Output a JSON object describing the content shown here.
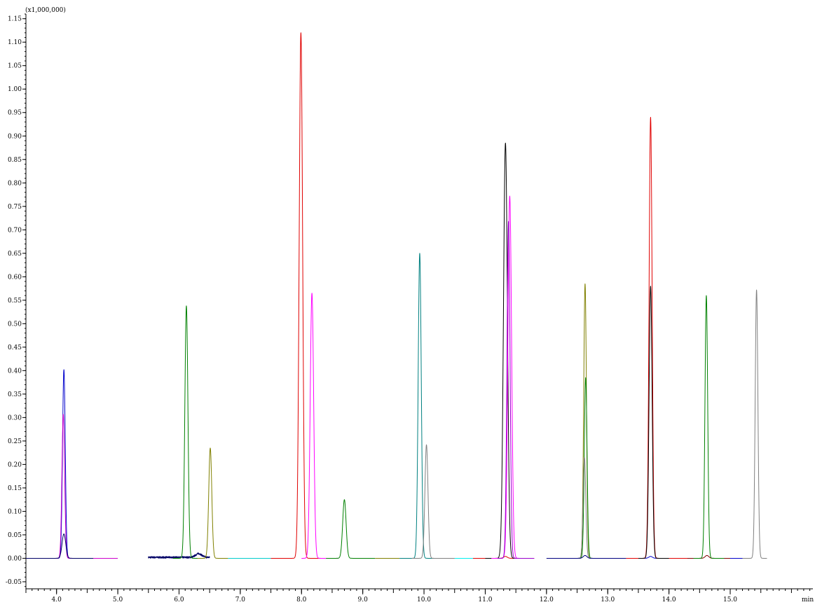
{
  "chart_data": {
    "type": "line",
    "y_multiplier_label": "(x1,000,000)",
    "x_unit_label": "min",
    "xlim": [
      3.5,
      16.35
    ],
    "ylim": [
      -0.065,
      1.16
    ],
    "x_ticks": [
      4.0,
      5.0,
      6.0,
      7.0,
      8.0,
      9.0,
      10.0,
      11.0,
      12.0,
      13.0,
      14.0,
      15.0
    ],
    "x_tick_labels": [
      "4.0",
      "5.0",
      "6.0",
      "7.0",
      "8.0",
      "9.0",
      "10.0",
      "11.0",
      "12.0",
      "13.0",
      "14.0",
      "15.0"
    ],
    "y_ticks": [
      -0.05,
      0.0,
      0.05,
      0.1,
      0.15,
      0.2,
      0.25,
      0.3,
      0.35,
      0.4,
      0.45,
      0.5,
      0.55,
      0.6,
      0.65,
      0.7,
      0.75,
      0.8,
      0.85,
      0.9,
      0.95,
      1.0,
      1.05,
      1.1,
      1.15
    ],
    "y_tick_labels": [
      "-0.05",
      "0.00",
      "0.05",
      "0.10",
      "0.15",
      "0.20",
      "0.25",
      "0.30",
      "0.35",
      "0.40",
      "0.45",
      "0.50",
      "0.55",
      "0.60",
      "0.65",
      "0.70",
      "0.75",
      "0.80",
      "0.85",
      "0.90",
      "0.95",
      "1.00",
      "1.05",
      "1.10",
      "1.15"
    ],
    "grid": false,
    "legend": "none",
    "series": [
      {
        "color": "#0000cc",
        "range": [
          3.5,
          4.6
        ],
        "peaks": [
          {
            "rt": 4.12,
            "height": 0.402,
            "width": 0.022
          }
        ]
      },
      {
        "color": "#cc00cc",
        "range": [
          3.5,
          5.0
        ],
        "peaks": [
          {
            "rt": 4.11,
            "height": 0.307,
            "width": 0.022
          }
        ]
      },
      {
        "color": "#000066",
        "range": [
          3.5,
          4.6
        ],
        "peaks": [
          {
            "rt": 4.12,
            "height": 0.052,
            "width": 0.03
          }
        ]
      },
      {
        "color": "#000066",
        "range": [
          5.5,
          6.5
        ],
        "noise": 0.004,
        "peaks": [
          {
            "rt": 6.32,
            "height": 0.008,
            "width": 0.05
          }
        ]
      },
      {
        "color": "#008000",
        "range": [
          5.9,
          6.4
        ],
        "peaks": [
          {
            "rt": 6.12,
            "height": 0.538,
            "width": 0.025
          }
        ]
      },
      {
        "color": "#808000",
        "range": [
          6.3,
          6.8
        ],
        "peaks": [
          {
            "rt": 6.51,
            "height": 0.235,
            "width": 0.025
          }
        ]
      },
      {
        "color": "#00cccc",
        "range": [
          6.8,
          7.5
        ],
        "peaks": []
      },
      {
        "color": "#e00000",
        "range": [
          7.5,
          8.5
        ],
        "peaks": [
          {
            "rt": 7.99,
            "height": 1.12,
            "width": 0.028
          }
        ]
      },
      {
        "color": "#ff00ff",
        "range": [
          8.0,
          8.6
        ],
        "peaks": [
          {
            "rt": 8.17,
            "height": 0.565,
            "width": 0.028
          }
        ]
      },
      {
        "color": "#008000",
        "range": [
          8.4,
          9.2
        ],
        "peaks": [
          {
            "rt": 8.7,
            "height": 0.125,
            "width": 0.028
          }
        ]
      },
      {
        "color": "#808000",
        "range": [
          9.2,
          9.6
        ],
        "peaks": []
      },
      {
        "color": "#008080",
        "range": [
          9.6,
          10.5
        ],
        "peaks": [
          {
            "rt": 9.93,
            "height": 0.65,
            "width": 0.025
          }
        ]
      },
      {
        "color": "#808080",
        "range": [
          9.8,
          10.5
        ],
        "peaks": [
          {
            "rt": 10.04,
            "height": 0.242,
            "width": 0.025
          }
        ]
      },
      {
        "color": "#00eeee",
        "range": [
          10.5,
          10.8
        ],
        "peaks": []
      },
      {
        "color": "#e00000",
        "range": [
          10.8,
          11.8
        ],
        "peaks": [
          {
            "rt": 11.33,
            "height": 0.004,
            "width": 0.03
          }
        ]
      },
      {
        "color": "#000000",
        "range": [
          11.0,
          11.7
        ],
        "peaks": [
          {
            "rt": 11.33,
            "height": 0.885,
            "width": 0.032
          }
        ]
      },
      {
        "color": "#ff00ff",
        "range": [
          11.1,
          11.8
        ],
        "peaks": [
          {
            "rt": 11.4,
            "height": 0.772,
            "width": 0.03
          }
        ]
      },
      {
        "color": "#9900cc",
        "range": [
          11.2,
          11.8
        ],
        "peaks": [
          {
            "rt": 11.38,
            "height": 0.718,
            "width": 0.025
          }
        ]
      },
      {
        "color": "#808000",
        "range": [
          12.4,
          12.9
        ],
        "peaks": [
          {
            "rt": 12.63,
            "height": 0.585,
            "width": 0.022
          }
        ]
      },
      {
        "color": "#008000",
        "range": [
          12.4,
          12.9
        ],
        "peaks": [
          {
            "rt": 12.64,
            "height": 0.385,
            "width": 0.022
          }
        ]
      },
      {
        "color": "#808080",
        "range": [
          12.4,
          12.9
        ],
        "peaks": [
          {
            "rt": 12.62,
            "height": 0.215,
            "width": 0.022
          }
        ]
      },
      {
        "color": "#000080",
        "range": [
          12.0,
          13.3
        ],
        "peaks": [
          {
            "rt": 12.63,
            "height": 0.006,
            "width": 0.03
          }
        ]
      },
      {
        "color": "#00cccc",
        "range": [
          13.3,
          13.6
        ],
        "peaks": []
      },
      {
        "color": "#0000cc",
        "range": [
          13.4,
          14.0
        ],
        "peaks": [
          {
            "rt": 13.7,
            "height": 0.004,
            "width": 0.03
          }
        ]
      },
      {
        "color": "#e00000",
        "range": [
          13.3,
          14.5
        ],
        "peaks": [
          {
            "rt": 13.7,
            "height": 0.94,
            "width": 0.025
          }
        ]
      },
      {
        "color": "#000000",
        "range": [
          13.5,
          14.0
        ],
        "peaks": [
          {
            "rt": 13.7,
            "height": 0.58,
            "width": 0.025
          }
        ]
      },
      {
        "color": "#800000",
        "range": [
          14.3,
          15.3
        ],
        "peaks": [
          {
            "rt": 14.62,
            "height": 0.006,
            "width": 0.03
          }
        ]
      },
      {
        "color": "#008000",
        "range": [
          14.4,
          14.9
        ],
        "peaks": [
          {
            "rt": 14.61,
            "height": 0.56,
            "width": 0.022
          }
        ]
      },
      {
        "color": "#808080",
        "range": [
          15.2,
          15.6
        ],
        "peaks": [
          {
            "rt": 15.43,
            "height": 0.572,
            "width": 0.022
          }
        ]
      },
      {
        "color": "#0000cc",
        "range": [
          15.0,
          15.2
        ],
        "peaks": []
      }
    ]
  }
}
